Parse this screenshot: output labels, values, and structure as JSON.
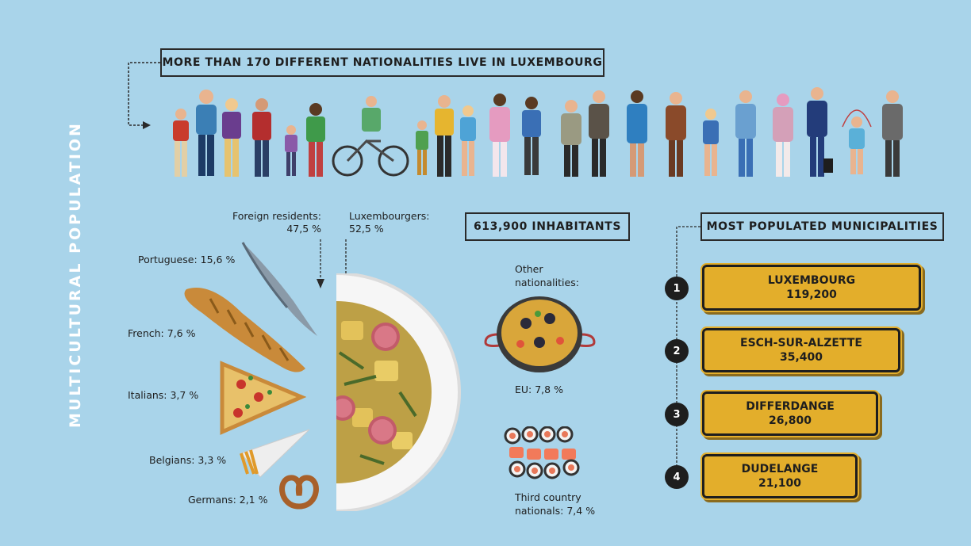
{
  "side_title": "MULTICULTURAL POPULATION",
  "header": "MORE THAN 170 DIFFERENT NATIONALITIES LIVE IN LUXEMBOURG",
  "inhabitants": "613,900 INHABITANTS",
  "municipalities_title": "MOST POPULATED MUNICIPALITIES",
  "foreign": {
    "label": "Foreign residents:",
    "value": "47,5 %"
  },
  "luxembourgers": {
    "label": "Luxembourgers:",
    "value": "52,5 %"
  },
  "nationalities": [
    {
      "label": "Portuguese: 15,6 %",
      "icon": "sardine-icon"
    },
    {
      "label": "French: 7,6 %",
      "icon": "baguette-icon"
    },
    {
      "label": "Italians: 3,7 %",
      "icon": "pizza-icon"
    },
    {
      "label": "Belgians: 3,3 %",
      "icon": "fries-icon"
    },
    {
      "label": "Germans: 2,1 %",
      "icon": "pretzel-icon"
    }
  ],
  "other": {
    "label_line1": "Other",
    "label_line2": "nationalities:"
  },
  "eu": {
    "label": "EU: 7,8 %",
    "icon": "paella-icon"
  },
  "third": {
    "line1": "Third country",
    "line2": "nationals: 7,4 %",
    "icon": "sushi-icon"
  },
  "municipalities": [
    {
      "rank": "1",
      "name": "LUXEMBOURG",
      "pop": "119,200"
    },
    {
      "rank": "2",
      "name": "ESCH-SUR-ALZETTE",
      "pop": "35,400"
    },
    {
      "rank": "3",
      "name": "DIFFERDANGE",
      "pop": "26,800"
    },
    {
      "rank": "4",
      "name": "DUDELANGE",
      "pop": "21,100"
    }
  ],
  "colors": {
    "background": "#a9d4ea",
    "sign": "#e3ae2b",
    "ink": "#1e1e1e"
  }
}
